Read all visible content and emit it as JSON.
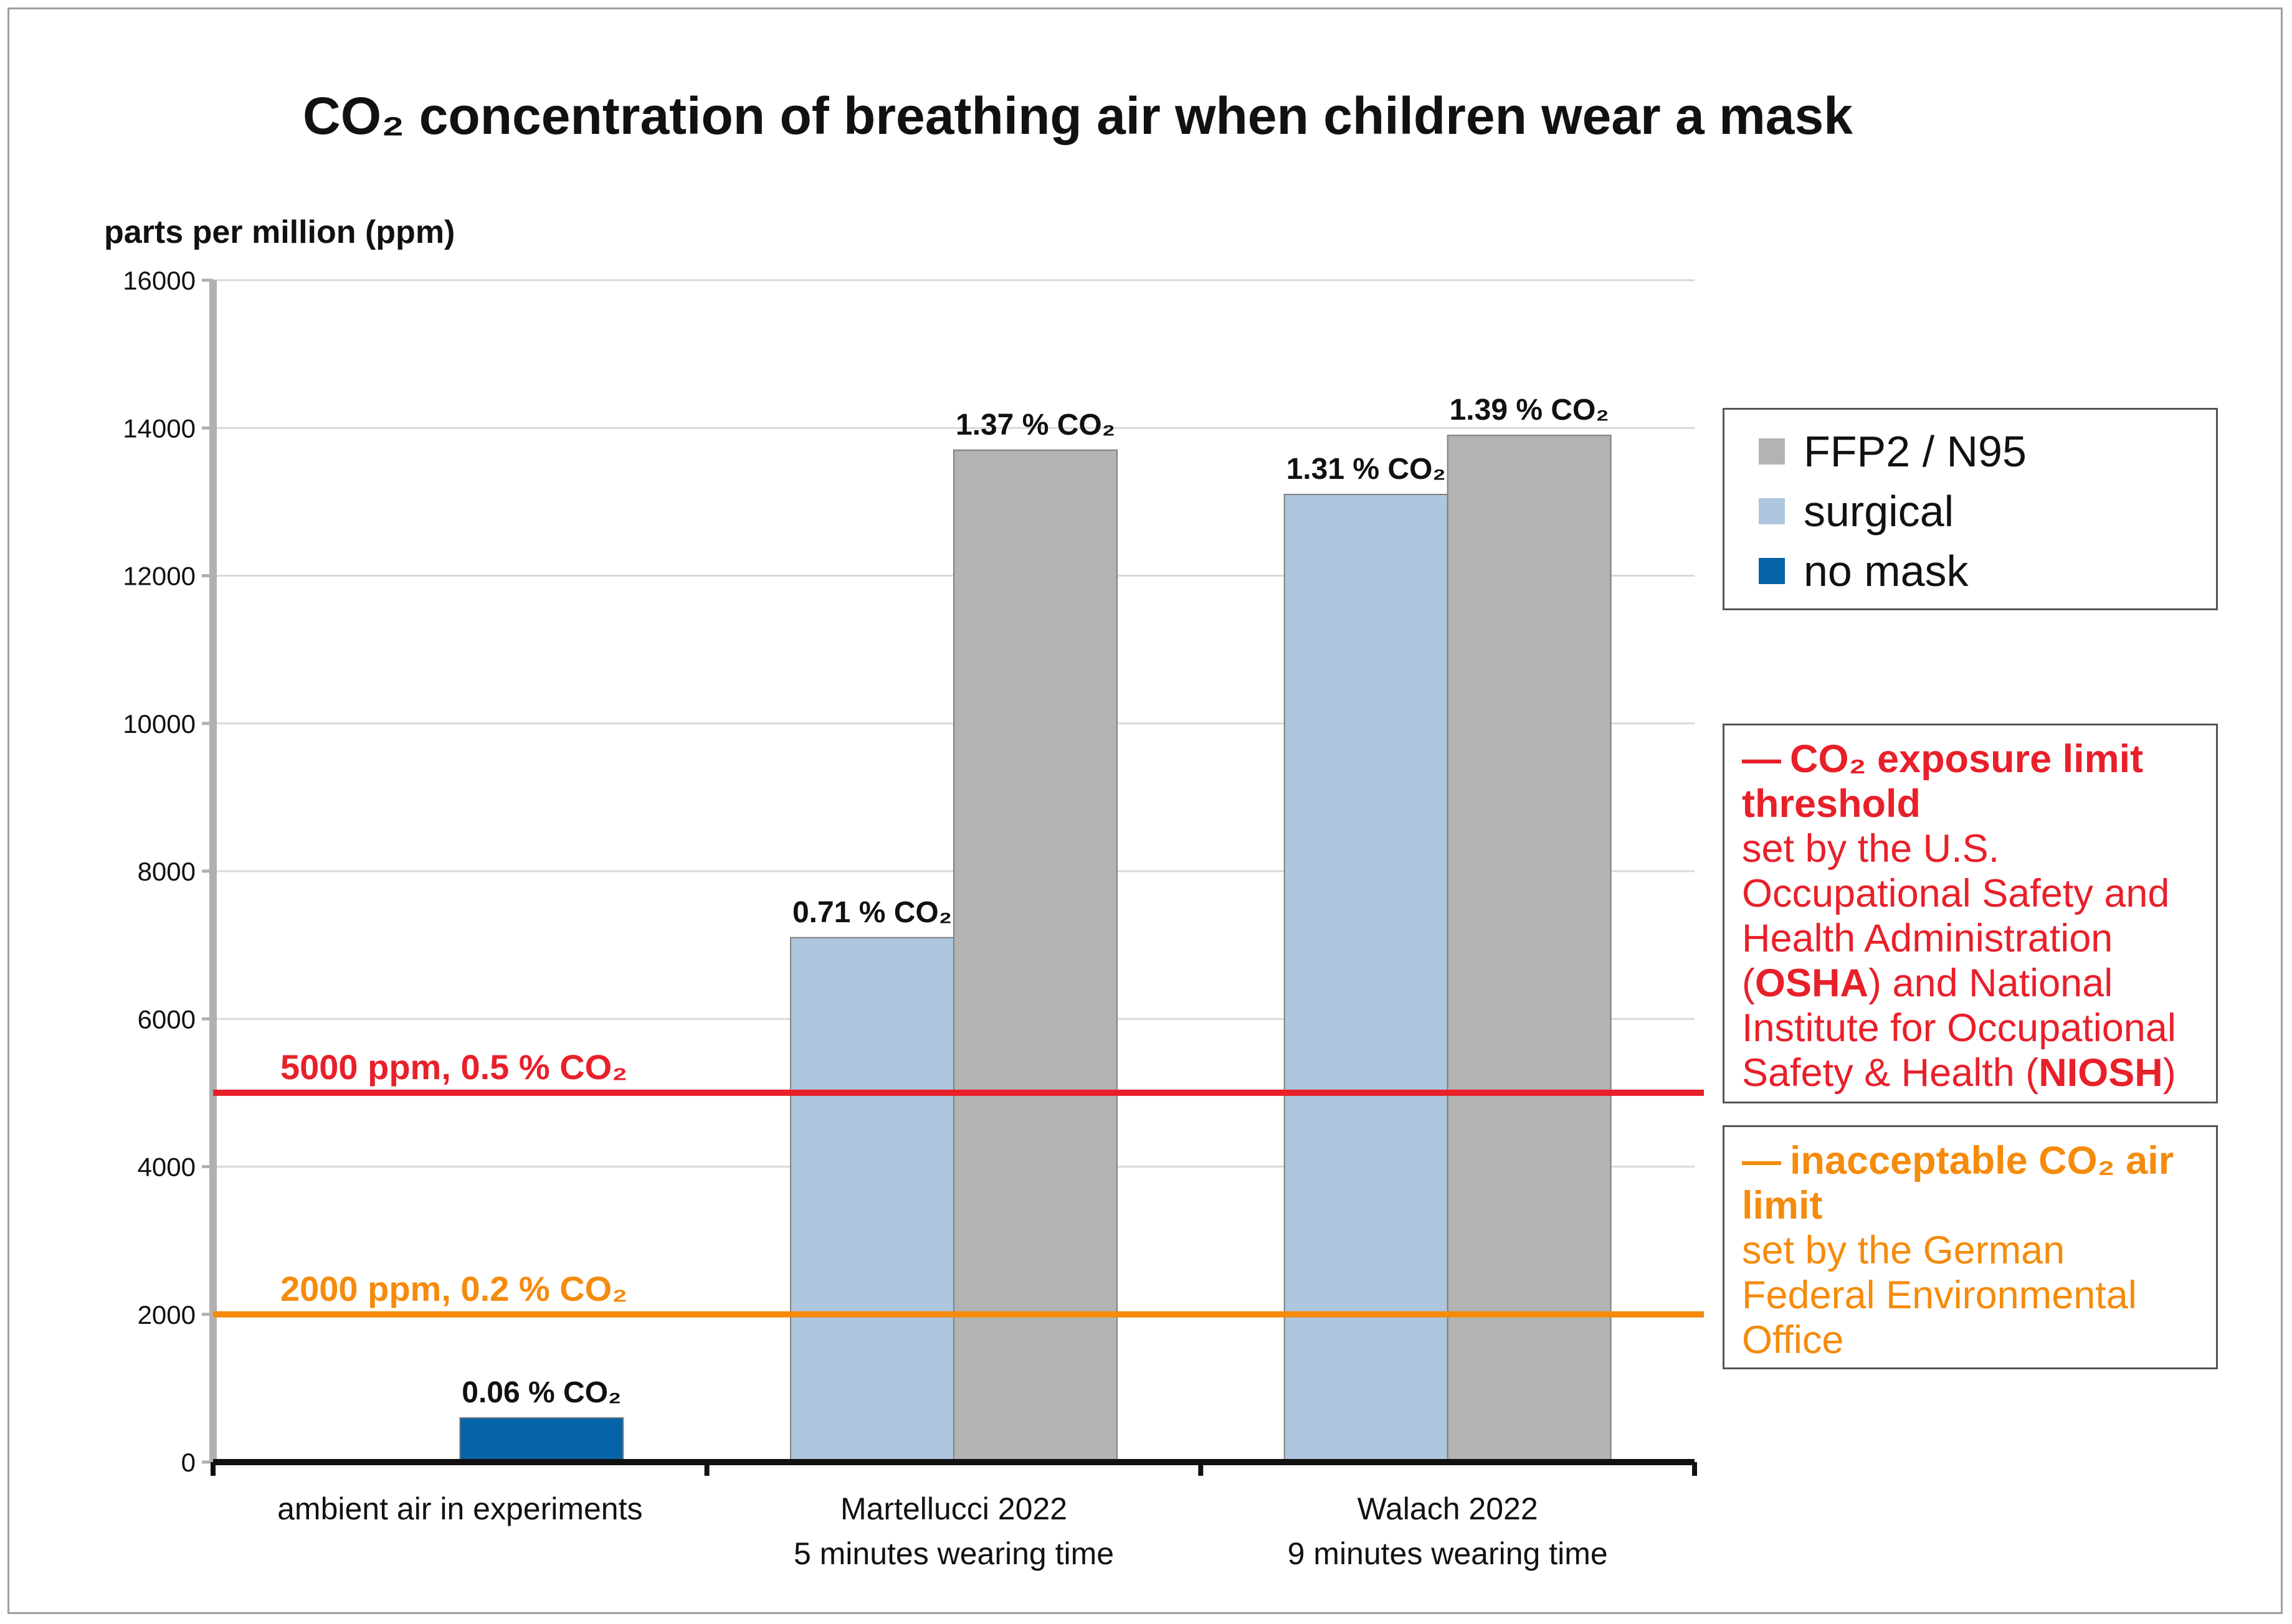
{
  "chart_data": {
    "type": "bar",
    "title": "CO₂ concentration of breathing air when children wear a mask",
    "ylabel": "parts per million (ppm)",
    "xlabel": "",
    "ylim": [
      0,
      16000
    ],
    "yticks": [
      "0",
      "2000",
      "4000",
      "6000",
      "8000",
      "10000",
      "12000",
      "14000",
      "16000"
    ],
    "grid": true,
    "categories": [
      {
        "line1": "ambient air in experiments",
        "line2": ""
      },
      {
        "line1": "Martellucci 2022",
        "line2": "5 minutes wearing time"
      },
      {
        "line1": "Walach 2022",
        "line2": "9 minutes wearing time"
      }
    ],
    "series": [
      {
        "name": "no mask",
        "color": "#0563a8",
        "values": [
          600,
          null,
          null
        ],
        "labels": [
          "0.06 % CO₂",
          "",
          ""
        ]
      },
      {
        "name": "surgical",
        "color": "#aec6de",
        "values": [
          null,
          7100,
          13100
        ],
        "labels": [
          "",
          "0.71 % CO₂",
          "1.31 % CO₂"
        ]
      },
      {
        "name": "FFP2 / N95",
        "color": "#b3b3b3",
        "values": [
          null,
          13700,
          13900
        ],
        "labels": [
          "",
          "1.37 % CO₂",
          "1.39 % CO₂"
        ]
      }
    ],
    "thresholds": [
      {
        "value": 5000,
        "label": "5000 ppm, 0.5 % CO₂",
        "color": "#e8202a"
      },
      {
        "value": 2000,
        "label": "2000 ppm, 0.2 % CO₂",
        "color": "#f58b0c"
      }
    ]
  },
  "legend": {
    "items": [
      {
        "label": "FFP2 / N95",
        "color": "#b3b3b3"
      },
      {
        "label": "surgical",
        "color": "#aec6de"
      },
      {
        "label": "no mask",
        "color": "#0563a8"
      }
    ]
  },
  "notes": {
    "osha": {
      "dash": "—",
      "title": "CO₂ exposure limit threshold",
      "t1": "set by the U.S. Occupational Safety and Health Administration (",
      "b1": "OSHA",
      "t2": ") and National Institute for Occupational Safety & Health (",
      "b2": "NIOSH",
      "t3": ")",
      "color": "#e8202a"
    },
    "uba": {
      "dash": "—",
      "title": "inacceptable CO₂ air limit",
      "body": "set by the German Federal Environmental Office",
      "color": "#f58b0c"
    }
  }
}
